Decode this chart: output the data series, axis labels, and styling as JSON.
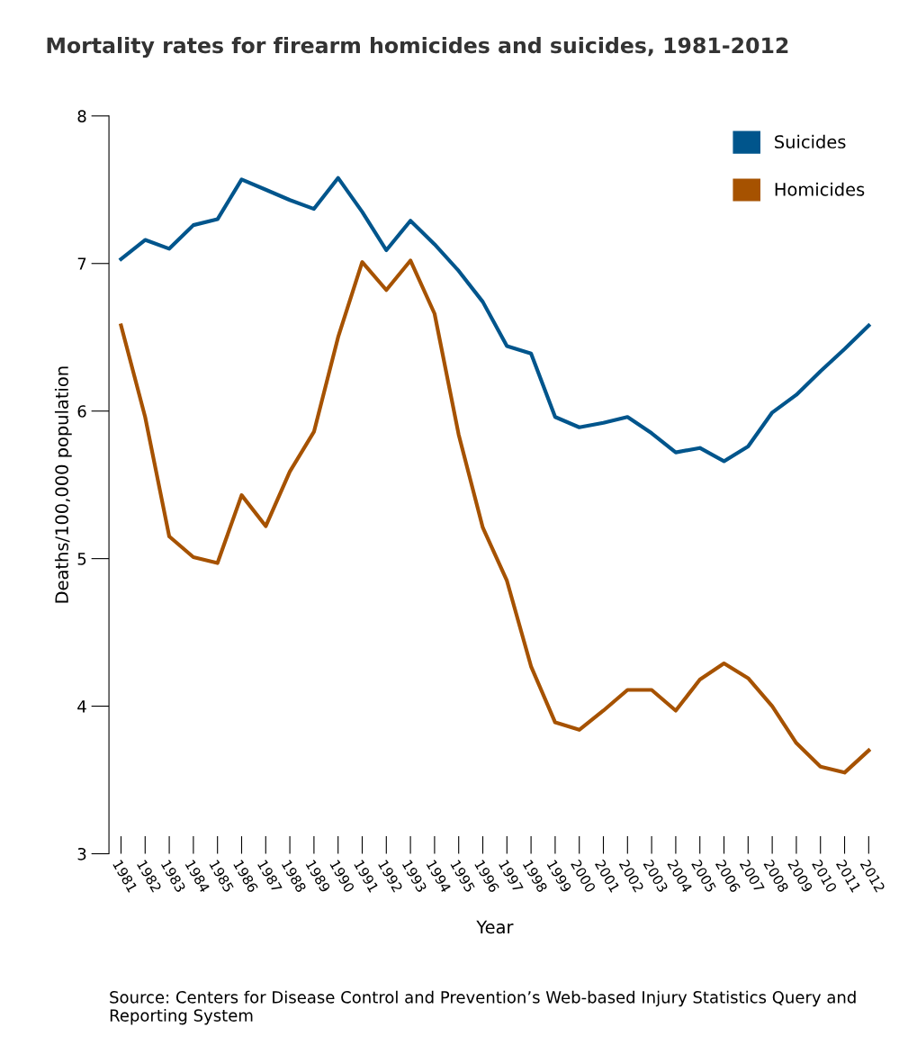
{
  "chart_data": {
    "type": "line",
    "title": "Mortality rates for firearm homicides and suicides, 1981-2012",
    "xlabel": "Year",
    "ylabel": "Deaths/100,000 population",
    "categories": [
      "1981",
      "1982",
      "1983",
      "1984",
      "1985",
      "1986",
      "1987",
      "1988",
      "1989",
      "1990",
      "1991",
      "1992",
      "1993",
      "1994",
      "1995",
      "1996",
      "1997",
      "1998",
      "1999",
      "2000",
      "2001",
      "2002",
      "2003",
      "2004",
      "2005",
      "2006",
      "2007",
      "2008",
      "2009",
      "2010",
      "2011",
      "2012"
    ],
    "series": [
      {
        "name": "Suicides",
        "color": "#00558c",
        "values": [
          7.03,
          7.16,
          7.1,
          7.26,
          7.3,
          7.57,
          7.5,
          7.43,
          7.37,
          7.58,
          7.35,
          7.09,
          7.29,
          7.13,
          6.95,
          6.74,
          6.44,
          6.39,
          5.96,
          5.89,
          5.92,
          5.96,
          5.85,
          5.72,
          5.75,
          5.66,
          5.76,
          5.99,
          6.11,
          6.27,
          6.42,
          6.58
        ]
      },
      {
        "name": "Homicides",
        "color": "#a65200",
        "values": [
          6.58,
          5.96,
          5.15,
          5.01,
          4.97,
          5.43,
          5.22,
          5.59,
          5.86,
          6.5,
          7.01,
          6.82,
          7.02,
          6.66,
          5.84,
          5.21,
          4.85,
          4.27,
          3.89,
          3.84,
          3.97,
          4.11,
          4.11,
          3.97,
          4.18,
          4.29,
          4.19,
          4.0,
          3.75,
          3.59,
          3.55,
          3.7
        ]
      }
    ],
    "ylim": [
      3,
      8
    ],
    "yticks": [
      3,
      4,
      5,
      6,
      7,
      8
    ],
    "grid": false,
    "legend": "top right",
    "marker": "none",
    "line_style": "solid",
    "annotations": [
      "Source: Centers for Disease Control and Prevention’s Web-based Injury Statistics Query and Reporting System"
    ]
  }
}
